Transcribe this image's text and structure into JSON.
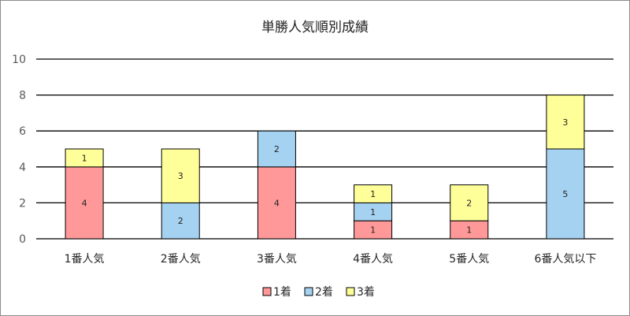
{
  "chart_data": {
    "type": "bar",
    "stacked": true,
    "title": "単勝人気順別成績",
    "categories": [
      "1番人気",
      "2番人気",
      "3番人気",
      "4番人気",
      "5番人気",
      "6番人気以下"
    ],
    "series": [
      {
        "name": "1着",
        "color": "#ff9999",
        "values": [
          4,
          0,
          4,
          1,
          1,
          0
        ]
      },
      {
        "name": "2着",
        "color": "#a6d2f2",
        "values": [
          0,
          2,
          2,
          1,
          0,
          5
        ]
      },
      {
        "name": "3着",
        "color": "#ffff99",
        "values": [
          1,
          3,
          0,
          1,
          2,
          3
        ]
      }
    ],
    "ylim": [
      0,
      10
    ],
    "yticks": [
      0,
      2,
      4,
      6,
      8,
      10
    ],
    "grid": true,
    "legend_position": "bottom",
    "xlabel": "",
    "ylabel": ""
  }
}
